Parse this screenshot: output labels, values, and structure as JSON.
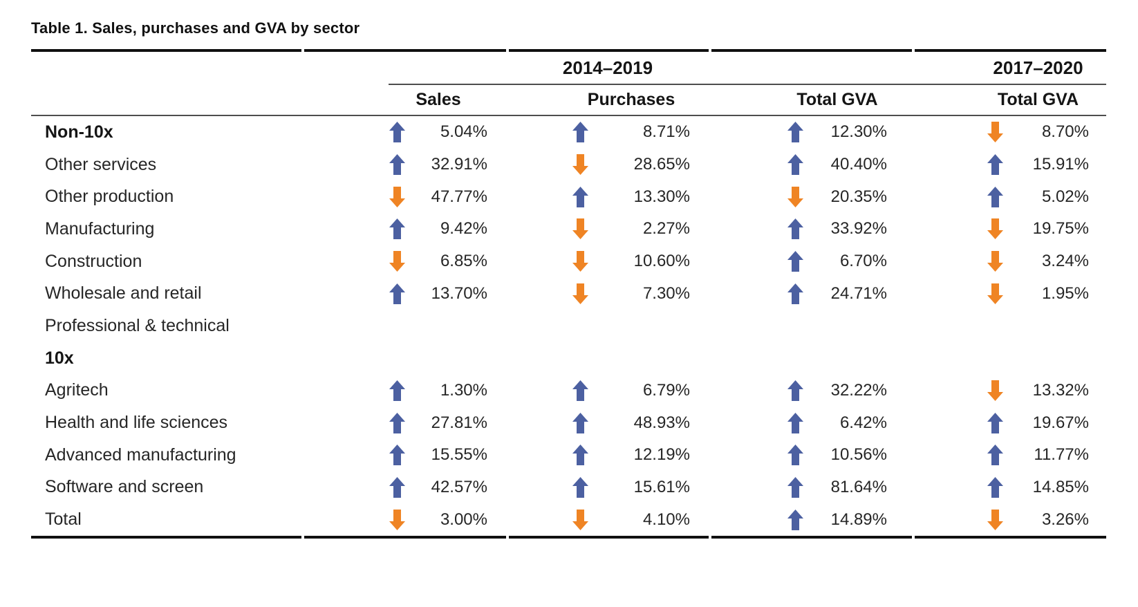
{
  "chart_data": {
    "type": "table",
    "title": "Table 1. Sales, purchases and GVA by sector",
    "year_groups": [
      "2014–2019",
      "2017–2020"
    ],
    "columns": [
      "Sales",
      "Purchases",
      "Total GVA",
      "Total GVA"
    ],
    "colors": {
      "up_arrow": "#4c60a1",
      "down_arrow": "#ef8424"
    },
    "rows": [
      {
        "label": "Non-10x",
        "style": "bold",
        "cells": [
          {
            "dir": "up",
            "value": "5.04%"
          },
          {
            "dir": "up",
            "value": "8.71%"
          },
          {
            "dir": "up",
            "value": "12.30%"
          },
          {
            "dir": "down",
            "value": "8.70%"
          }
        ]
      },
      {
        "label": "Other services",
        "style": "normal",
        "cells": [
          {
            "dir": "up",
            "value": "32.91%"
          },
          {
            "dir": "down",
            "value": "28.65%"
          },
          {
            "dir": "up",
            "value": "40.40%"
          },
          {
            "dir": "up",
            "value": "15.91%"
          }
        ]
      },
      {
        "label": "Other production",
        "style": "normal",
        "cells": [
          {
            "dir": "down",
            "value": "47.77%"
          },
          {
            "dir": "up",
            "value": "13.30%"
          },
          {
            "dir": "down",
            "value": "20.35%"
          },
          {
            "dir": "up",
            "value": "5.02%"
          }
        ]
      },
      {
        "label": "Manufacturing",
        "style": "normal",
        "cells": [
          {
            "dir": "up",
            "value": "9.42%"
          },
          {
            "dir": "down",
            "value": "2.27%"
          },
          {
            "dir": "up",
            "value": "33.92%"
          },
          {
            "dir": "down",
            "value": "19.75%"
          }
        ]
      },
      {
        "label": "Construction",
        "style": "normal",
        "cells": [
          {
            "dir": "down",
            "value": "6.85%"
          },
          {
            "dir": "down",
            "value": "10.60%"
          },
          {
            "dir": "up",
            "value": "6.70%"
          },
          {
            "dir": "down",
            "value": "3.24%"
          }
        ]
      },
      {
        "label": "Wholesale and retail",
        "style": "normal",
        "cells": [
          {
            "dir": "up",
            "value": "13.70%"
          },
          {
            "dir": "down",
            "value": "7.30%"
          },
          {
            "dir": "up",
            "value": "24.71%"
          },
          {
            "dir": "down",
            "value": "1.95%"
          }
        ]
      },
      {
        "label": "Professional & technical",
        "style": "normal",
        "cells": [
          null,
          null,
          null,
          null
        ]
      },
      {
        "label": "10x",
        "style": "bold",
        "cells": [
          null,
          null,
          null,
          null
        ]
      },
      {
        "label": "Agritech",
        "style": "normal",
        "cells": [
          {
            "dir": "up",
            "value": "1.30%"
          },
          {
            "dir": "up",
            "value": "6.79%"
          },
          {
            "dir": "up",
            "value": "32.22%"
          },
          {
            "dir": "down",
            "value": "13.32%"
          }
        ]
      },
      {
        "label": "Health and life sciences",
        "style": "normal",
        "cells": [
          {
            "dir": "up",
            "value": "27.81%"
          },
          {
            "dir": "up",
            "value": "48.93%"
          },
          {
            "dir": "up",
            "value": "6.42%"
          },
          {
            "dir": "up",
            "value": "19.67%"
          }
        ]
      },
      {
        "label": "Advanced manufacturing",
        "style": "normal",
        "cells": [
          {
            "dir": "up",
            "value": "15.55%"
          },
          {
            "dir": "up",
            "value": "12.19%"
          },
          {
            "dir": "up",
            "value": "10.56%"
          },
          {
            "dir": "up",
            "value": "11.77%"
          }
        ]
      },
      {
        "label": "Software and screen",
        "style": "normal",
        "cells": [
          {
            "dir": "up",
            "value": "42.57%"
          },
          {
            "dir": "up",
            "value": "15.61%"
          },
          {
            "dir": "up",
            "value": "81.64%"
          },
          {
            "dir": "up",
            "value": "14.85%"
          }
        ]
      },
      {
        "label": "Total",
        "style": "normal",
        "cells": [
          {
            "dir": "down",
            "value": "3.00%"
          },
          {
            "dir": "down",
            "value": "4.10%"
          },
          {
            "dir": "up",
            "value": "14.89%"
          },
          {
            "dir": "down",
            "value": "3.26%"
          }
        ]
      }
    ]
  }
}
